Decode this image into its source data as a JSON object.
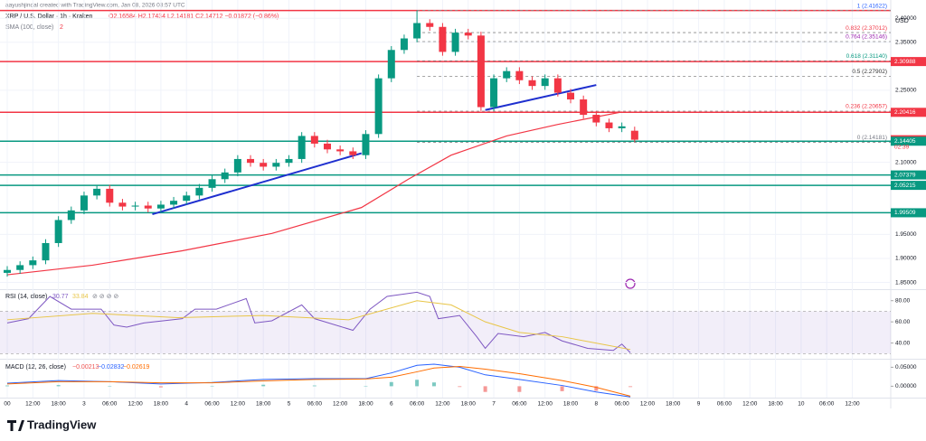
{
  "chart_data": {
    "type": "candlestick",
    "credit": "aayushjindal created with TradingView.com, Jan 08, 2026 03:57 UTC",
    "title": "XRP / U.S. Dollar · 1h · Kraken",
    "ohlc_text": "O2.16584 H2.17434 L2.14181 C2.14712 −0.01872 (−0.86%)",
    "sma_label": "SMA (100, close)",
    "sma_value_text": "2",
    "currency": "USD",
    "countdown": "02:39",
    "brand": "TradingView",
    "up_color": "#089981",
    "down_color": "#f23645",
    "x": [
      0,
      3,
      6,
      9,
      12,
      15,
      18,
      21,
      24,
      27,
      30,
      33,
      36,
      39,
      42,
      45,
      48,
      51,
      54,
      57,
      60,
      63,
      66,
      69,
      72,
      75,
      78,
      81,
      84,
      87,
      90,
      93,
      96,
      99,
      102,
      105,
      108,
      111,
      114,
      117,
      120,
      123,
      126,
      129,
      132,
      135,
      138,
      141,
      144,
      147
    ],
    "open": [
      1.87,
      1.876,
      1.886,
      1.896,
      1.932,
      1.98,
      2.0,
      2.031,
      2.045,
      2.016,
      2.008,
      2.01,
      2.004,
      2.012,
      2.02,
      2.031,
      2.047,
      2.065,
      2.079,
      2.107,
      2.099,
      2.091,
      2.099,
      2.107,
      2.155,
      2.139,
      2.127,
      2.123,
      2.115,
      2.159,
      2.275,
      2.334,
      2.358,
      2.39,
      2.382,
      2.33,
      2.37,
      2.364,
      2.215,
      2.275,
      2.29,
      2.271,
      2.259,
      2.275,
      2.245,
      2.231,
      2.199,
      2.183,
      2.171,
      2.16584
    ],
    "high": [
      1.884,
      1.894,
      1.904,
      1.94,
      1.988,
      2.008,
      2.039,
      2.053,
      2.053,
      2.024,
      2.018,
      2.018,
      2.02,
      2.028,
      2.039,
      2.055,
      2.073,
      2.087,
      2.115,
      2.115,
      2.107,
      2.107,
      2.115,
      2.163,
      2.163,
      2.147,
      2.135,
      2.131,
      2.167,
      2.283,
      2.342,
      2.366,
      2.41622,
      2.398,
      2.39,
      2.378,
      2.378,
      2.372,
      2.283,
      2.298,
      2.298,
      2.279,
      2.283,
      2.283,
      2.253,
      2.239,
      2.207,
      2.191,
      2.183,
      2.17434
    ],
    "low": [
      1.862,
      1.868,
      1.878,
      1.888,
      1.924,
      1.972,
      1.992,
      2.023,
      2.008,
      2.0,
      2.0,
      1.996,
      1.996,
      2.004,
      2.012,
      2.023,
      2.039,
      2.057,
      2.071,
      2.091,
      2.083,
      2.083,
      2.091,
      2.099,
      2.131,
      2.119,
      2.115,
      2.107,
      2.107,
      2.151,
      2.267,
      2.326,
      2.35,
      2.374,
      2.322,
      2.322,
      2.356,
      2.207,
      2.207,
      2.267,
      2.263,
      2.251,
      2.251,
      2.237,
      2.223,
      2.191,
      2.175,
      2.163,
      2.163,
      2.14181
    ],
    "close": [
      1.876,
      1.886,
      1.896,
      1.932,
      1.98,
      2.0,
      2.031,
      2.045,
      2.016,
      2.008,
      2.01,
      2.004,
      2.012,
      2.02,
      2.031,
      2.047,
      2.065,
      2.079,
      2.107,
      2.099,
      2.091,
      2.099,
      2.107,
      2.155,
      2.139,
      2.127,
      2.123,
      2.115,
      2.159,
      2.275,
      2.334,
      2.358,
      2.39,
      2.382,
      2.33,
      2.37,
      2.364,
      2.215,
      2.275,
      2.29,
      2.271,
      2.259,
      2.275,
      2.245,
      2.231,
      2.199,
      2.183,
      2.171,
      2.175,
      2.14712
    ],
    "sma": {
      "color": "#f23645",
      "x": [
        0,
        20,
        41,
        62,
        83,
        94,
        104,
        117,
        129,
        144
      ],
      "values": [
        1.866,
        1.886,
        1.916,
        1.952,
        2.006,
        2.065,
        2.115,
        2.155,
        2.179,
        2.205
      ]
    },
    "trendlines": [
      {
        "color": "#1e2fcf",
        "x": [
          34,
          83
        ],
        "values": [
          1.992,
          2.119
        ]
      },
      {
        "color": "#1e2fcf",
        "x": [
          112,
          138
        ],
        "values": [
          2.209,
          2.261
        ]
      }
    ],
    "levels": [
      {
        "value": 2.41622,
        "color": "#f23645"
      },
      {
        "value": 2.30988,
        "color": "#f23645"
      },
      {
        "value": 2.20416,
        "color": "#f23645"
      },
      {
        "value": 2.14405,
        "color": "#089981"
      },
      {
        "value": 2.07379,
        "color": "#089981"
      },
      {
        "value": 2.05215,
        "color": "#089981"
      },
      {
        "value": 1.99509,
        "color": "#089981"
      }
    ],
    "price_labels": [
      {
        "value": 2.30988,
        "color": "#f23645"
      },
      {
        "value": 2.20416,
        "color": "#f23645"
      },
      {
        "value": 2.14712,
        "color": "#f23645"
      },
      {
        "value": 2.14405,
        "color": "#089981"
      },
      {
        "value": 2.07379,
        "color": "#089981"
      },
      {
        "value": 2.05215,
        "color": "#089981"
      },
      {
        "value": 1.99509,
        "color": "#089981"
      }
    ],
    "fib": [
      {
        "value": 2.41622,
        "label": "1 (2.41622)",
        "color": "#2962ff"
      },
      {
        "value": 2.37012,
        "label": "0.832 (2.37012)",
        "color": "#f23645"
      },
      {
        "value": 2.35146,
        "label": "0.764 (2.35146)",
        "color": "#9c27b0"
      },
      {
        "value": 2.3114,
        "label": "0.618 (2.31140)",
        "color": "#089981"
      },
      {
        "value": 2.27902,
        "label": "0.5 (2.27902)",
        "color": "#333333"
      },
      {
        "value": 2.20657,
        "label": "0.236 (2.20657)",
        "color": "#f23645"
      },
      {
        "value": 2.14181,
        "label": "0 (2.14181)",
        "color": "#787b86"
      }
    ],
    "xlim": [
      0,
      207
    ],
    "ylim": [
      1.836,
      2.438
    ],
    "yticks": [
      {
        "value": 1.85,
        "label": "1.85000"
      },
      {
        "value": 1.9,
        "label": "1.90000"
      },
      {
        "value": 1.95,
        "label": "1.95000"
      },
      {
        "value": 2.1,
        "label": "2.10000"
      },
      {
        "value": 2.25,
        "label": "2.25000"
      },
      {
        "value": 2.35,
        "label": "2.35000"
      },
      {
        "value": 2.4,
        "label": "2.40000"
      }
    ],
    "xticks": [
      {
        "value": 0,
        "label": "00"
      },
      {
        "value": 6,
        "label": "12:00"
      },
      {
        "value": 12,
        "label": "18:00"
      },
      {
        "value": 18,
        "label": "3"
      },
      {
        "value": 24,
        "label": "06:00"
      },
      {
        "value": 30,
        "label": "12:00"
      },
      {
        "value": 36,
        "label": "18:00"
      },
      {
        "value": 42,
        "label": "4"
      },
      {
        "value": 48,
        "label": "06:00"
      },
      {
        "value": 54,
        "label": "12:00"
      },
      {
        "value": 60,
        "label": "18:00"
      },
      {
        "value": 66,
        "label": "5"
      },
      {
        "value": 72,
        "label": "06:00"
      },
      {
        "value": 78,
        "label": "12:00"
      },
      {
        "value": 84,
        "label": "18:00"
      },
      {
        "value": 90,
        "label": "6"
      },
      {
        "value": 96,
        "label": "06:00"
      },
      {
        "value": 102,
        "label": "12:00"
      },
      {
        "value": 108,
        "label": "18:00"
      },
      {
        "value": 114,
        "label": "7"
      },
      {
        "value": 120,
        "label": "06:00"
      },
      {
        "value": 126,
        "label": "12:00"
      },
      {
        "value": 132,
        "label": "18:00"
      },
      {
        "value": 138,
        "label": "8"
      },
      {
        "value": 144,
        "label": "06:00"
      },
      {
        "value": 150,
        "label": "12:00"
      },
      {
        "value": 156,
        "label": "18:00"
      },
      {
        "value": 162,
        "label": "9"
      },
      {
        "value": 168,
        "label": "06:00"
      },
      {
        "value": 174,
        "label": "12:00"
      },
      {
        "value": 180,
        "label": "18:00"
      },
      {
        "value": 186,
        "label": "10"
      },
      {
        "value": 192,
        "label": "06:00"
      },
      {
        "value": 198,
        "label": "12:00"
      }
    ],
    "rsi": {
      "label": "RSI (14, close)",
      "value_texts": [
        "30.77",
        "33.84",
        "⊘ ⊘ ⊘ ⊘"
      ],
      "ylim": [
        26,
        90
      ],
      "yticks": [
        {
          "value": 40,
          "label": "40.00"
        },
        {
          "value": 60,
          "label": "60.00"
        },
        {
          "value": 80,
          "label": "80.00"
        }
      ],
      "band": [
        30,
        70
      ],
      "series": [
        {
          "name": "RSI",
          "color": "#7e57c2",
          "x": [
            0,
            5,
            10,
            15,
            22,
            25,
            28,
            32,
            41,
            44,
            49,
            56,
            58,
            62,
            69,
            72,
            81,
            85,
            89,
            96,
            99,
            101,
            106,
            110,
            112,
            115,
            121,
            126,
            130,
            136,
            142,
            144,
            146
          ],
          "values": [
            59,
            63,
            84,
            72,
            72,
            57,
            55,
            59,
            63,
            72,
            72,
            82,
            59,
            61,
            76,
            63,
            52,
            72,
            84,
            88,
            84,
            63,
            66,
            46,
            35,
            49,
            46,
            50,
            42,
            35,
            33,
            39,
            30.77
          ]
        },
        {
          "name": "RSI-based MA",
          "color": "#e8c547",
          "x": [
            0,
            20,
            40,
            60,
            80,
            96,
            104,
            112,
            120,
            130,
            146
          ],
          "values": [
            62,
            68,
            64,
            66,
            62,
            80,
            76,
            60,
            50,
            46,
            33.84
          ]
        }
      ]
    },
    "macd": {
      "label": "MACD (12, 26, close)",
      "value_texts": [
        "−0.00213",
        "−0.02832",
        "−0.02619"
      ],
      "ylim": [
        -0.03,
        0.07
      ],
      "yticks": [
        {
          "value": 0,
          "label": "0.00000"
        },
        {
          "value": 0.05,
          "label": "0.05000"
        }
      ],
      "x": [
        0,
        12,
        24,
        36,
        48,
        60,
        72,
        84,
        90,
        96,
        100,
        106,
        112,
        120,
        130,
        138,
        146
      ],
      "histogram": [
        0.002,
        0.003,
        0,
        -0.003,
        0.001,
        0.004,
        0.002,
        0.001,
        0.011,
        0.017,
        0.01,
        -0.002,
        -0.015,
        -0.015,
        -0.013,
        -0.012,
        -0.00213
      ],
      "series": [
        {
          "name": "MACD",
          "color": "#2962ff",
          "values": [
            0.008,
            0.015,
            0.012,
            0.006,
            0.01,
            0.018,
            0.02,
            0.02,
            0.035,
            0.055,
            0.058,
            0.05,
            0.03,
            0.018,
            0.002,
            -0.015,
            -0.02832
          ]
        },
        {
          "name": "Signal",
          "color": "#ff6d00",
          "values": [
            0.006,
            0.012,
            0.012,
            0.009,
            0.009,
            0.014,
            0.018,
            0.019,
            0.024,
            0.038,
            0.048,
            0.052,
            0.045,
            0.033,
            0.015,
            -0.003,
            -0.02619
          ]
        }
      ]
    }
  }
}
